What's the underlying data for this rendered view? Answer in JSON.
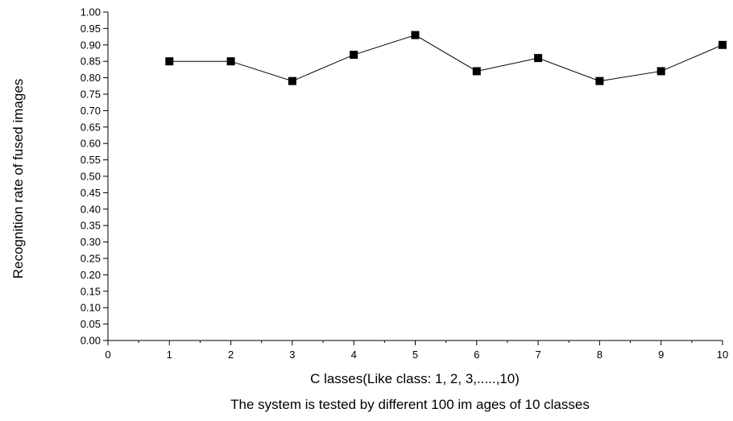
{
  "chart_data": {
    "type": "line",
    "xlabel": "C lasses(Like class: 1, 2, 3,.....,10)",
    "ylabel": "Recognition rate of fused images",
    "caption": "The system is tested by different 100 im ages of 10 classes",
    "xlim": [
      0,
      10
    ],
    "ylim": [
      0,
      1
    ],
    "x_ticks": [
      0,
      1,
      2,
      3,
      4,
      5,
      6,
      7,
      8,
      9,
      10
    ],
    "y_ticks": [
      0.0,
      0.05,
      0.1,
      0.15,
      0.2,
      0.25,
      0.3,
      0.35,
      0.4,
      0.45,
      0.5,
      0.55,
      0.6,
      0.65,
      0.7,
      0.75,
      0.8,
      0.85,
      0.9,
      0.95,
      1.0
    ],
    "x_tick_labels": [
      "0",
      "1",
      "2",
      "3",
      "4",
      "5",
      "6",
      "7",
      "8",
      "9",
      "10"
    ],
    "y_tick_labels": [
      "0.00",
      "0.05",
      "0.10",
      "0.15",
      "0.20",
      "0.25",
      "0.30",
      "0.35",
      "0.40",
      "0.45",
      "0.50",
      "0.55",
      "0.60",
      "0.65",
      "0.70",
      "0.75",
      "0.80",
      "0.85",
      "0.90",
      "0.95",
      "1.00"
    ],
    "grid": false,
    "series": [
      {
        "x": [
          1,
          2,
          3,
          4,
          5,
          6,
          7,
          8,
          9,
          10
        ],
        "values": [
          0.85,
          0.85,
          0.79,
          0.87,
          0.93,
          0.82,
          0.86,
          0.79,
          0.82,
          0.9
        ],
        "marker": "square",
        "color": "#000000"
      }
    ]
  }
}
